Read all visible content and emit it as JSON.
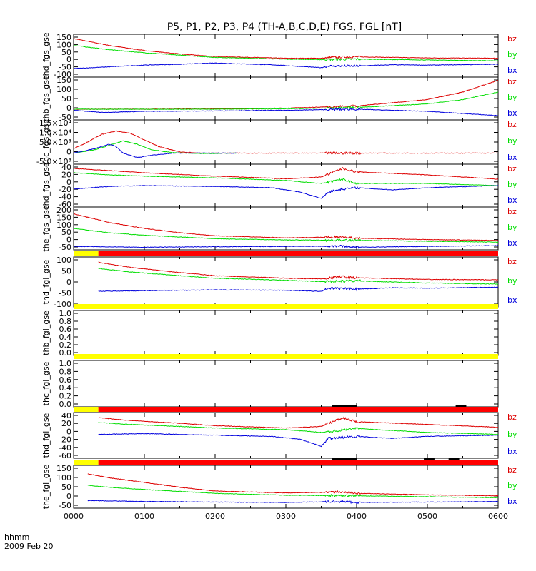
{
  "title": "P5, P1, P2, P3, P4 (TH-A,B,C,D,E) FGS, FGL [nT]",
  "colors": {
    "bx": "#0000dd",
    "by": "#00dd00",
    "bz": "#dd0000",
    "bar_yellow": "#ffff00",
    "bar_red": "#ff0000",
    "bar_black": "#000000"
  },
  "chart_data": {
    "type": "line",
    "x_axis": {
      "label_line1": "hhmm",
      "label_line2": "2009 Feb 20",
      "range": [
        "0000",
        "0600"
      ],
      "tick_labels": [
        "0000",
        "0100",
        "0200",
        "0300",
        "0400",
        "0500",
        "0600"
      ]
    },
    "legend": [
      "bz",
      "by",
      "bx"
    ],
    "panels": [
      {
        "ylabel": "thd_fgs_gse",
        "ylim": [
          -100,
          150
        ],
        "yticks": [
          "150",
          "100",
          "50",
          "0",
          "-50",
          "-100"
        ],
        "series": [
          {
            "name": "bz",
            "x": [
              0,
              0.5,
              1,
              1.5,
              2,
              3,
              3.5,
              3.8,
              4,
              5,
              6
            ],
            "y": [
              125,
              85,
              55,
              35,
              20,
              10,
              10,
              18,
              18,
              12,
              10
            ]
          },
          {
            "name": "by",
            "x": [
              0,
              0.5,
              1,
              1.5,
              2,
              3,
              3.5,
              4,
              5,
              6
            ],
            "y": [
              85,
              60,
              42,
              28,
              15,
              5,
              2,
              5,
              0,
              -5
            ]
          },
          {
            "name": "bx",
            "x": [
              0,
              0.5,
              1,
              1.5,
              2,
              2.8,
              3.5,
              3.6,
              4,
              4.5,
              5,
              6
            ],
            "y": [
              -50,
              -40,
              -30,
              -25,
              -18,
              -28,
              -45,
              -35,
              -35,
              -28,
              -30,
              -25
            ]
          }
        ]
      },
      {
        "ylabel": "thb_fgs_gse",
        "ylim": [
          -50,
          150
        ],
        "yticks": [
          "150",
          "100",
          "50",
          "0",
          "-50"
        ],
        "series": [
          {
            "name": "bz",
            "x": [
              0,
              1,
              2,
              3,
              4,
              5,
              5.5,
              6
            ],
            "y": [
              0,
              0,
              2,
              5,
              15,
              45,
              80,
              135
            ]
          },
          {
            "name": "by",
            "x": [
              0,
              1,
              2,
              3,
              4,
              5,
              5.5,
              6
            ],
            "y": [
              0,
              0,
              0,
              2,
              8,
              25,
              45,
              80
            ]
          },
          {
            "name": "bx",
            "x": [
              0,
              0.4,
              1,
              2,
              3,
              4,
              5,
              6
            ],
            "y": [
              -5,
              -15,
              -10,
              -8,
              -5,
              0,
              -10,
              -30
            ]
          }
        ]
      },
      {
        "ylabel": "thc_fgs_gse",
        "ylim": [
          -5000,
          15000
        ],
        "yticks": [
          "1.5×10⁴",
          "1.0×10⁴",
          "5.0×10³",
          "0",
          "-5.0×10³"
        ],
        "series": [
          {
            "name": "bz",
            "x": [
              0,
              0.2,
              0.4,
              0.6,
              0.8,
              1.0,
              1.2,
              1.5,
              1.8,
              2.0,
              3,
              4,
              5,
              6
            ],
            "y": [
              2000,
              5000,
              8500,
              10000,
              9000,
              6000,
              3000,
              500,
              0,
              0,
              0,
              0,
              0,
              0
            ]
          },
          {
            "name": "by",
            "x": [
              0,
              0.3,
              0.5,
              0.7,
              0.9,
              1.1,
              1.4,
              1.8,
              2.3
            ],
            "y": [
              0,
              1500,
              3500,
              5500,
              4000,
              1500,
              200,
              -200,
              0
            ]
          },
          {
            "name": "bx",
            "x": [
              0,
              0.3,
              0.5,
              0.6,
              0.7,
              0.9,
              1.1,
              1.4,
              2.3
            ],
            "y": [
              0,
              2000,
              4000,
              3000,
              0,
              -2000,
              -1000,
              0,
              0
            ]
          }
        ]
      },
      {
        "ylabel": "thd_fgs_gse",
        "ylim": [
          -60,
          40
        ],
        "yticks": [
          "40",
          "20",
          "0",
          "-20",
          "-40",
          "-60"
        ],
        "series": [
          {
            "name": "bz",
            "x": [
              0,
              0.5,
              1,
              2,
              3,
              3.5,
              3.8,
              4,
              5,
              6
            ],
            "y": [
              30,
              25,
              20,
              12,
              6,
              10,
              30,
              22,
              15,
              5
            ]
          },
          {
            "name": "by",
            "x": [
              0,
              0.5,
              1,
              2,
              3,
              3.5,
              3.8,
              4,
              5,
              6
            ],
            "y": [
              20,
              15,
              12,
              8,
              2,
              -5,
              5,
              -5,
              -5,
              -10
            ]
          },
          {
            "name": "bx",
            "x": [
              0,
              0.5,
              1,
              2,
              2.8,
              3.2,
              3.5,
              3.6,
              3.8,
              4,
              4.5,
              5,
              6
            ],
            "y": [
              -18,
              -12,
              -10,
              -12,
              -15,
              -25,
              -40,
              -25,
              -18,
              -15,
              -20,
              -15,
              -10
            ]
          }
        ]
      },
      {
        "ylabel": "the_fgs_gse",
        "ylim": [
          -50,
          200
        ],
        "yticks": [
          "200",
          "150",
          "100",
          "50",
          "0",
          "-50"
        ],
        "series": [
          {
            "name": "bz",
            "x": [
              0,
              0.5,
              1,
              1.5,
              2,
              3,
              3.8,
              4,
              5,
              6
            ],
            "y": [
              160,
              110,
              75,
              50,
              32,
              20,
              25,
              18,
              10,
              5
            ]
          },
          {
            "name": "by",
            "x": [
              0,
              0.5,
              1,
              2,
              3,
              4,
              5,
              6
            ],
            "y": [
              75,
              50,
              35,
              15,
              8,
              5,
              0,
              -5
            ]
          },
          {
            "name": "bx",
            "x": [
              0,
              1,
              2,
              3,
              3.8,
              4,
              5,
              6
            ],
            "y": [
              -30,
              -35,
              -32,
              -30,
              -28,
              -35,
              -30,
              -25
            ]
          }
        ]
      },
      {
        "ylabel": "thd_fgl_gse",
        "ylim": [
          -120,
          120
        ],
        "yticks": [
          "100",
          "50",
          "0",
          "-50",
          "-100"
        ],
        "series": [
          {
            "name": "bz",
            "x": [
              0.35,
              0.8,
              1.5,
              2,
              3,
              3.5,
              3.8,
              4,
              5,
              6
            ],
            "y": [
              95,
              70,
              45,
              30,
              18,
              15,
              25,
              20,
              12,
              10
            ]
          },
          {
            "name": "by",
            "x": [
              0.35,
              0.8,
              1.5,
              2,
              3,
              3.5,
              4,
              5,
              6
            ],
            "y": [
              65,
              48,
              30,
              18,
              8,
              2,
              5,
              -5,
              -10
            ]
          },
          {
            "name": "bx",
            "x": [
              0.35,
              1,
              2,
              3,
              3.5,
              3.6,
              4,
              4.5,
              5,
              6
            ],
            "y": [
              -45,
              -42,
              -38,
              -40,
              -45,
              -30,
              -35,
              -28,
              -30,
              -25
            ]
          }
        ]
      },
      {
        "ylabel": "thb_fgl_gse",
        "ylim": [
          -0.1,
          1.05
        ],
        "yticks": [
          "1.0",
          "0.8",
          "0.6",
          "0.4",
          "0.2",
          "0.0"
        ],
        "series": []
      },
      {
        "ylabel": "thc_fgl_gse",
        "ylim": [
          -0.1,
          1.05
        ],
        "yticks": [
          "1.0",
          "0.8",
          "0.6",
          "0.4",
          "0.2",
          "0.0"
        ],
        "series": []
      },
      {
        "ylabel": "thd_fgl_gse",
        "ylim": [
          -70,
          45
        ],
        "yticks": [
          "40",
          "20",
          "0",
          "-20",
          "-40",
          "-60"
        ],
        "series": [
          {
            "name": "bz",
            "x": [
              0.35,
              0.8,
              1.5,
              2,
              3,
              3.5,
              3.8,
              4,
              5,
              6
            ],
            "y": [
              32,
              25,
              18,
              12,
              6,
              10,
              32,
              22,
              15,
              8
            ]
          },
          {
            "name": "by",
            "x": [
              0.35,
              0.8,
              1.5,
              2,
              3,
              3.5,
              4,
              5,
              6
            ],
            "y": [
              20,
              15,
              10,
              6,
              2,
              -5,
              5,
              -5,
              -10
            ]
          },
          {
            "name": "bx",
            "x": [
              0.35,
              1,
              2,
              2.8,
              3.2,
              3.5,
              3.6,
              4,
              4.5,
              5,
              6
            ],
            "y": [
              -10,
              -8,
              -12,
              -15,
              -22,
              -40,
              -20,
              -15,
              -20,
              -15,
              -12
            ]
          }
        ]
      },
      {
        "ylabel": "the_fgl_gse",
        "ylim": [
          -60,
          165
        ],
        "yticks": [
          "150",
          "100",
          "50",
          "0",
          "-50"
        ],
        "series": [
          {
            "name": "bz",
            "x": [
              0.2,
              0.5,
              1,
              1.5,
              2,
              3,
              3.8,
              4,
              5,
              6
            ],
            "y": [
              120,
              100,
              75,
              50,
              30,
              20,
              25,
              18,
              10,
              5
            ]
          },
          {
            "name": "by",
            "x": [
              0.2,
              0.5,
              1,
              2,
              3,
              4,
              5,
              6
            ],
            "y": [
              60,
              50,
              38,
              18,
              8,
              5,
              0,
              -5
            ]
          },
          {
            "name": "bx",
            "x": [
              0.2,
              1,
              2,
              3,
              3.8,
              4,
              5,
              6
            ],
            "y": [
              -20,
              -25,
              -28,
              -30,
              -25,
              -30,
              -28,
              -25
            ]
          }
        ]
      }
    ],
    "status_bars": [
      {
        "after_panel": 4,
        "segments": [
          {
            "color": "bar_yellow",
            "x": [
              0,
              0.35
            ]
          },
          {
            "color": "bar_red",
            "x": [
              0.35,
              6
            ]
          }
        ],
        "marks": []
      },
      {
        "after_panel": 5,
        "segments": [
          {
            "color": "bar_yellow",
            "x": [
              0,
              6
            ]
          }
        ],
        "marks": []
      },
      {
        "after_panel": 6,
        "segments": [
          {
            "color": "bar_yellow",
            "x": [
              0,
              6
            ]
          }
        ],
        "marks": []
      },
      {
        "after_panel": 7,
        "segments": [
          {
            "color": "bar_yellow",
            "x": [
              0,
              0.35
            ]
          },
          {
            "color": "bar_red",
            "x": [
              0.35,
              6
            ]
          }
        ],
        "marks": [
          {
            "x": [
              3.65,
              4.0
            ]
          },
          {
            "x": [
              5.4,
              5.55
            ]
          }
        ]
      },
      {
        "after_panel": 8,
        "segments": [
          {
            "color": "bar_yellow",
            "x": [
              0,
              0.35
            ]
          },
          {
            "color": "bar_red",
            "x": [
              0.35,
              6
            ]
          }
        ],
        "marks": [
          {
            "x": [
              3.65,
              4.0
            ]
          },
          {
            "x": [
              4.95,
              5.1
            ]
          },
          {
            "x": [
              5.3,
              5.45
            ]
          }
        ]
      }
    ]
  }
}
